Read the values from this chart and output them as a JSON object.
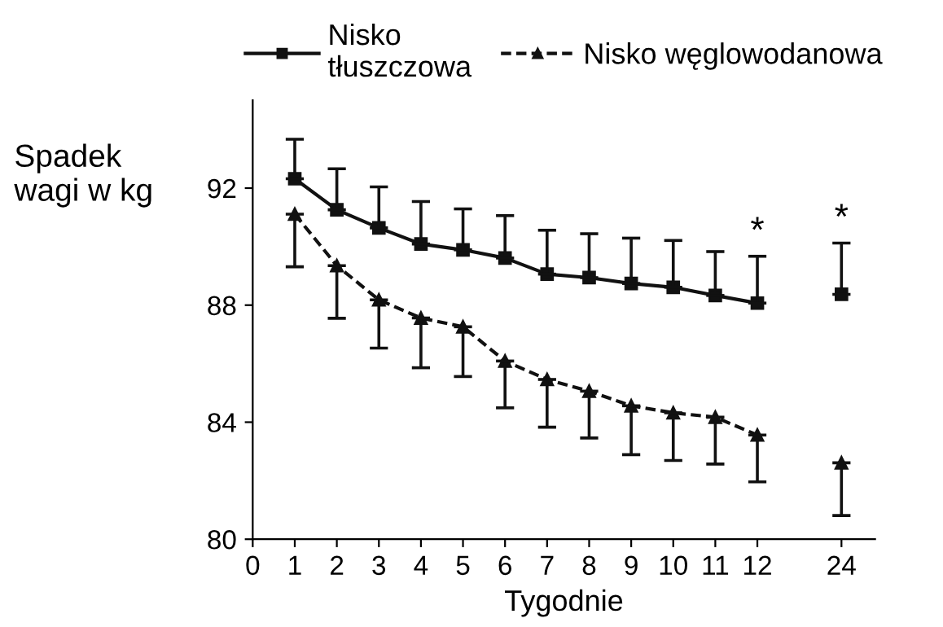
{
  "chart_data": {
    "type": "line",
    "ylabel": "Spadek\nwagi w kg",
    "xlabel": "Tygodnie",
    "categories": [
      "0",
      "1",
      "2",
      "3",
      "4",
      "5",
      "6",
      "7",
      "8",
      "9",
      "10",
      "11",
      "12",
      null,
      "24"
    ],
    "series": [
      {
        "name": "Nisko\ntłuszczowa",
        "color": "#111111",
        "marker": "square",
        "line_style": "solid",
        "values": [
          null,
          92.32,
          91.26,
          90.64,
          90.09,
          89.89,
          89.61,
          89.06,
          88.94,
          88.74,
          88.61,
          88.33,
          88.07,
          null,
          88.37
        ],
        "errors": [
          null,
          [
            92.32,
            93.67
          ],
          [
            91.26,
            92.66
          ],
          [
            90.64,
            92.04
          ],
          [
            90.09,
            91.54
          ],
          [
            89.89,
            91.29
          ],
          [
            89.61,
            91.06
          ],
          [
            89.06,
            90.56
          ],
          [
            88.94,
            90.44
          ],
          [
            88.74,
            90.29
          ],
          [
            88.61,
            90.21
          ],
          [
            88.33,
            89.83
          ],
          [
            88.07,
            89.67
          ],
          null,
          [
            88.37,
            90.12
          ]
        ]
      },
      {
        "name": "Nisko węglowodanowa",
        "color": "#111111",
        "marker": "triangle",
        "line_style": "dashed",
        "values": [
          null,
          91.11,
          89.35,
          88.18,
          87.56,
          87.26,
          86.09,
          85.46,
          85.06,
          84.56,
          84.32,
          84.17,
          83.56,
          null,
          82.61
        ],
        "errors": [
          null,
          [
            89.31,
            91.11
          ],
          [
            87.55,
            89.35
          ],
          [
            86.53,
            88.18
          ],
          [
            85.86,
            87.56
          ],
          [
            85.56,
            87.26
          ],
          [
            84.49,
            86.09
          ],
          [
            83.83,
            85.46
          ],
          [
            83.46,
            85.06
          ],
          [
            82.89,
            84.56
          ],
          [
            82.69,
            84.32
          ],
          [
            82.57,
            84.17
          ],
          [
            81.96,
            83.56
          ],
          null,
          [
            80.81,
            82.61
          ]
        ]
      }
    ],
    "ylim": [
      80,
      95
    ],
    "yticks": [
      80,
      84,
      88,
      92
    ],
    "annotations": [
      {
        "text": "*",
        "x": "12",
        "y": 89.67
      },
      {
        "text": "*",
        "x": "24",
        "y": 90.12
      }
    ],
    "legend": "top",
    "grid": false
  }
}
